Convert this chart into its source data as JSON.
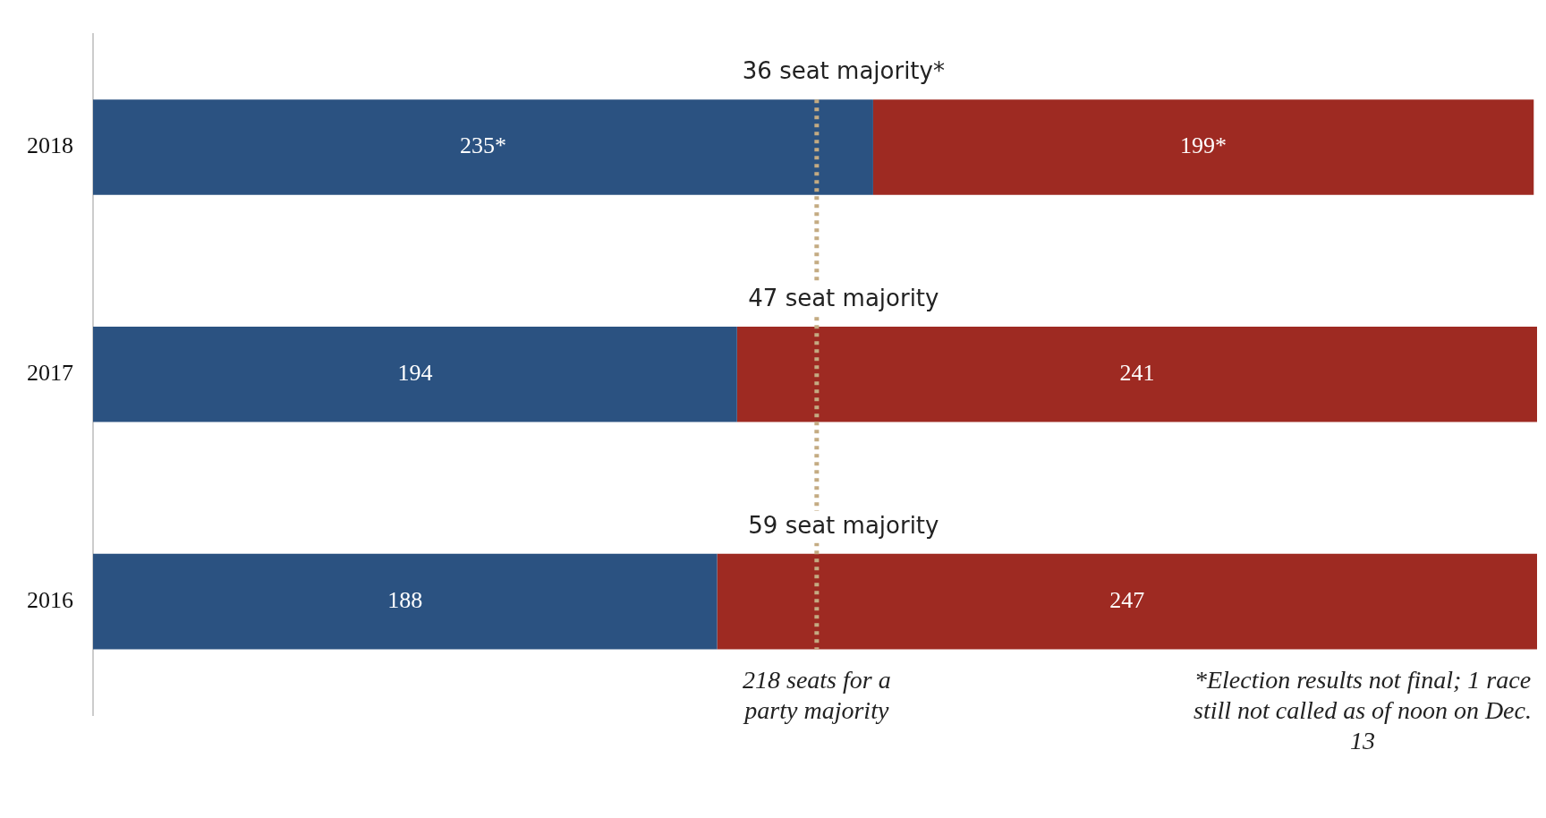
{
  "chart_data": {
    "type": "bar",
    "orientation": "horizontal",
    "stacked": true,
    "categories": [
      "2018",
      "2017",
      "2016"
    ],
    "series": [
      {
        "color": "#2b5281",
        "values": [
          235,
          194,
          188
        ],
        "value_labels": [
          "235*",
          "194",
          "188"
        ]
      },
      {
        "color": "#9e2a22",
        "values": [
          199,
          241,
          247
        ],
        "value_labels": [
          "199*",
          "241",
          "247"
        ]
      }
    ],
    "xlim": [
      0,
      435
    ],
    "tick_labels": "y",
    "grid": false,
    "legend": false,
    "ref_lines": [
      {
        "axis": "x",
        "value": 218,
        "label": "218 seats for a party majority",
        "color": "#c4ab82",
        "line_style": "dotted"
      }
    ],
    "annotations": [
      "36 seat majority*",
      "47 seat majority",
      "59 seat majority",
      "*Election results not final; 1 race still not called as of noon on Dec. 13"
    ]
  }
}
